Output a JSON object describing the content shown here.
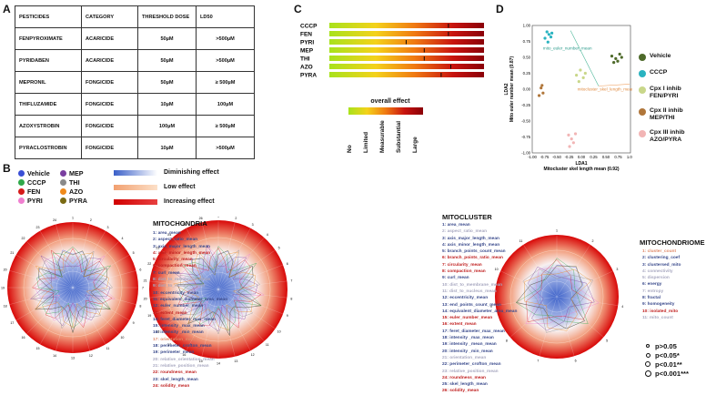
{
  "panels": {
    "A": "A",
    "B": "B",
    "C": "C",
    "D": "D"
  },
  "table": {
    "headers": [
      "PESTICIDES",
      "CATEGORY",
      "THRESHOLD DOSE",
      "LD50"
    ],
    "rows": [
      [
        "FENPYROXIMATE",
        "ACARICIDE",
        "50µM",
        ">500µM"
      ],
      [
        "PYRIDABEN",
        "ACARICIDE",
        "50µM",
        ">500µM"
      ],
      [
        "MEPRONIL",
        "FONGICIDE",
        "50µM",
        "≥ 500µM"
      ],
      [
        "THIFLUZAMIDE",
        "FONGICIDE",
        "10µM",
        "100µM"
      ],
      [
        "AZOXYSTROBIN",
        "FONGICIDE",
        "100µM",
        "≥ 500µM"
      ],
      [
        "PYRACLOSTROBIN",
        "FONGICIDE",
        "10µM",
        ">500µM"
      ]
    ]
  },
  "heatmap": {
    "rows": [
      "CCCP",
      "FEN",
      "PYRI",
      "MEP",
      "THI",
      "AZO",
      "PYRA"
    ],
    "legend_title": "overall effect",
    "legend_ticks": [
      "No",
      "Limited",
      "Measurable",
      "Substantial",
      "Large"
    ],
    "marker_fraction": [
      0.98,
      0.98,
      0.63,
      0.78,
      0.78,
      1.0,
      0.92
    ],
    "gradient": [
      "#a8e21c",
      "#f4d21a",
      "#f07a12",
      "#c8140f",
      "#8a0008"
    ]
  },
  "lda": {
    "chart_data": {
      "type": "scatter",
      "ylabel": "LDA2\nMito euler number mean (0.87)",
      "xlabel": "LDA1\nMitocluster skel length mean (0.92)",
      "xticks": [
        "-1.00",
        "-0.75",
        "-0.50",
        "-0.25",
        "0.00",
        "0.25",
        "0.50",
        "0.75",
        "1.00"
      ],
      "yticks": [
        "1.00",
        "0.75",
        "0.50",
        "0.25",
        "0.00",
        "-0.25",
        "-0.50",
        "-0.75",
        "-1.00"
      ],
      "xlim": [
        -1.0,
        1.0
      ],
      "ylim": [
        -1.0,
        1.0
      ],
      "annotations": [
        "mito_euler_number_mean",
        "mitocluster_skel_length_mean"
      ],
      "series": [
        {
          "name": "Vehicle",
          "color": "#4e6a2a",
          "points": [
            [
              0.62,
              0.52
            ],
            [
              0.7,
              0.48
            ],
            [
              0.78,
              0.55
            ],
            [
              0.74,
              0.44
            ],
            [
              0.82,
              0.5
            ],
            [
              0.66,
              0.42
            ]
          ]
        },
        {
          "name": "CCCP",
          "color": "#2ab3c0",
          "points": [
            [
              -0.7,
              0.9
            ],
            [
              -0.66,
              0.86
            ],
            [
              -0.62,
              0.82
            ],
            [
              -0.74,
              0.8
            ],
            [
              -0.68,
              0.74
            ],
            [
              -0.6,
              0.88
            ]
          ]
        },
        {
          "name": "Cpx I inhib\nFEN/PYRI",
          "color": "#c9d78a",
          "points": [
            [
              -0.1,
              0.22
            ],
            [
              -0.02,
              0.3
            ],
            [
              0.04,
              0.18
            ],
            [
              0.08,
              0.25
            ],
            [
              -0.05,
              0.12
            ]
          ]
        },
        {
          "name": "Cpx II inhib\nMEP/THI",
          "color": "#b0763a",
          "points": [
            [
              -0.82,
              0.02
            ],
            [
              -0.78,
              -0.06
            ],
            [
              -0.86,
              -0.1
            ],
            [
              -0.8,
              0.06
            ]
          ]
        },
        {
          "name": "Cpx III inhib\nAZO/PYRA",
          "color": "#f2b5b5",
          "points": [
            [
              -0.26,
              -0.72
            ],
            [
              -0.2,
              -0.78
            ],
            [
              -0.16,
              -0.84
            ],
            [
              -0.24,
              -0.9
            ],
            [
              -0.12,
              -0.7
            ]
          ]
        }
      ]
    }
  },
  "radar_legend": {
    "groups": [
      {
        "name": "Vehicle",
        "color": "#3a4fd6"
      },
      {
        "name": "CCCP",
        "color": "#2fa84a"
      },
      {
        "name": "FEN",
        "color": "#d61a1a"
      },
      {
        "name": "PYRI",
        "color": "#f07fd0"
      },
      {
        "name": "MEP",
        "color": "#7a3fa0"
      },
      {
        "name": "THI",
        "color": "#8a8a8a"
      },
      {
        "name": "AZO",
        "color": "#f08a1a"
      },
      {
        "name": "PYRA",
        "color": "#7a6a12"
      }
    ],
    "effects": [
      {
        "label": "Diminishing effect",
        "colors": [
          "#3a5fc8",
          "#ffffff"
        ]
      },
      {
        "label": "Low effect",
        "colors": [
          "#f2a070",
          "#fce0c8"
        ]
      },
      {
        "label": "Increasing effect",
        "colors": [
          "#d10000",
          "#e84040"
        ]
      }
    ]
  },
  "radars": [
    {
      "title": "MITOCHONDRIA",
      "items": [
        {
          "t": "1: area_mean",
          "c": "#3a4a8c"
        },
        {
          "t": "2: aspect_ratio_mean",
          "c": "#3a4a8c"
        },
        {
          "t": "3: axis_major_length_mean",
          "c": "#3a4a8c"
        },
        {
          "t": "4: axis_minor_length_mean",
          "c": "#c02020"
        },
        {
          "t": "5: circularity_mean",
          "c": "#c02020"
        },
        {
          "t": "6: compaction_mean",
          "c": "#c02020"
        },
        {
          "t": "7: curl_mean",
          "c": "#3a4a8c"
        },
        {
          "t": "8: dist_to_membrane_mean",
          "c": "#a8a8c0"
        },
        {
          "t": "9: dist_to_nucleus_mean",
          "c": "#a8a8c0"
        },
        {
          "t": "10: eccentricity_mean",
          "c": "#3a4a8c"
        },
        {
          "t": "11: equivalent_diameter_area_mean",
          "c": "#3a4a8c"
        },
        {
          "t": "12: euler_number_mean",
          "c": "#3a4a8c"
        },
        {
          "t": "13: extent_mean",
          "c": "#c02020"
        },
        {
          "t": "14: feret_diameter_max_mean",
          "c": "#3a4a8c"
        },
        {
          "t": "15: intensity _max_mean",
          "c": "#3a4a8c"
        },
        {
          "t": "16: intensity _min_mean",
          "c": "#3a4a8c"
        },
        {
          "t": "17: orientation_mean",
          "c": "#e08a6a"
        },
        {
          "t": "18: perimeter_crofton_mean",
          "c": "#3a4a8c"
        },
        {
          "t": "19: perimeter_mean",
          "c": "#3a4a8c"
        },
        {
          "t": "20: relative_orientation_mean",
          "c": "#a8a8c0"
        },
        {
          "t": "21: relative_position_mean",
          "c": "#a8a8c0"
        },
        {
          "t": "22: roundness_mean",
          "c": "#c02020"
        },
        {
          "t": "23: skel_length_mean",
          "c": "#3a4a8c"
        },
        {
          "t": "24: solidity_mean",
          "c": "#c02020"
        }
      ]
    },
    {
      "title": "MITOCLUSTER",
      "items": [
        {
          "t": "1: area_mean",
          "c": "#3a4a8c"
        },
        {
          "t": "2: aspect_ratio_mean",
          "c": "#a8a8c0"
        },
        {
          "t": "3: axis_major_length_mean",
          "c": "#3a4a8c"
        },
        {
          "t": "4: axis_minor_length_mean",
          "c": "#3a4a8c"
        },
        {
          "t": "5: branch_points_count_mean",
          "c": "#3a4a8c"
        },
        {
          "t": "6: branch_points_ratio_mean",
          "c": "#c02020"
        },
        {
          "t": "7: circularity_mean",
          "c": "#c02020"
        },
        {
          "t": "8: compaction_mean",
          "c": "#c02020"
        },
        {
          "t": "9: curl_mean",
          "c": "#3a4a8c"
        },
        {
          "t": "10: dist_to_membrane_mean",
          "c": "#a8a8c0"
        },
        {
          "t": "11: dist_to_nucleus_mean",
          "c": "#a8a8c0"
        },
        {
          "t": "12: eccentricity_mean",
          "c": "#3a4a8c"
        },
        {
          "t": "13: end_points_count_mean",
          "c": "#3a4a8c"
        },
        {
          "t": "14: equivalent_diameter_area_mean",
          "c": "#3a4a8c"
        },
        {
          "t": "15: euler_number_mean",
          "c": "#c02020"
        },
        {
          "t": "16: extent_mean",
          "c": "#c02020"
        },
        {
          "t": "17: feret_diameter_max_mean",
          "c": "#3a4a8c"
        },
        {
          "t": "18: intensity _max_mean",
          "c": "#3a4a8c"
        },
        {
          "t": "19: intensity _mean_mean",
          "c": "#3a4a8c"
        },
        {
          "t": "20: intensity _min_mean",
          "c": "#3a4a8c"
        },
        {
          "t": "21: orientation_mean",
          "c": "#a8a8c0"
        },
        {
          "t": "22: perimeter_crofton_mean",
          "c": "#3a4a8c"
        },
        {
          "t": "23: relative_position_mean",
          "c": "#a8a8c0"
        },
        {
          "t": "24: roundness_mean",
          "c": "#c02020"
        },
        {
          "t": "25: skel_length_mean",
          "c": "#3a4a8c"
        },
        {
          "t": "26: solidity_mean",
          "c": "#c02020"
        }
      ]
    },
    {
      "title": "MITOCHONDRIOME",
      "items": [
        {
          "t": "1: cluster_count",
          "c": "#e08a6a"
        },
        {
          "t": "2: clustering_coef",
          "c": "#3a4a8c"
        },
        {
          "t": "3: clustersed_mito",
          "c": "#3a4a8c"
        },
        {
          "t": "4: connectivity",
          "c": "#a8a8c0"
        },
        {
          "t": "5: dispersion",
          "c": "#a8a8c0"
        },
        {
          "t": "6: energy",
          "c": "#3a4a8c"
        },
        {
          "t": "7: entropy",
          "c": "#a8a8c0"
        },
        {
          "t": "8: fractal",
          "c": "#3a4a8c"
        },
        {
          "t": "9: homogeneity",
          "c": "#3a4a8c"
        },
        {
          "t": "10: isolated_mito",
          "c": "#c02020"
        },
        {
          "t": "11: mito_count",
          "c": "#a8a8c0"
        }
      ]
    }
  ],
  "significance": [
    "p>0.05",
    "p<0.05*",
    "p<0.01**",
    "p<0.001***"
  ]
}
